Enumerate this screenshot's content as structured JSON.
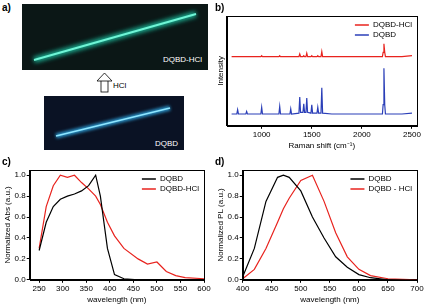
{
  "image_panel": {
    "title": "a)",
    "top_label": "DQBD-HCl",
    "arrow_label": "HCl",
    "bottom_label": "DQBD"
  },
  "chart_data": [
    {
      "type": "line",
      "title": "b)",
      "x_label": "Raman shift (cm⁻¹)",
      "y_label": "Intensity",
      "x": [
        700,
        752,
        760,
        768,
        842,
        850,
        858,
        992,
        1000,
        1008,
        1172,
        1180,
        1188,
        1282,
        1290,
        1298,
        1372,
        1380,
        1388,
        1412,
        1420,
        1428,
        1442,
        1450,
        1458,
        1492,
        1500,
        1508,
        1552,
        1560,
        1568,
        1592,
        1600,
        1608,
        1700,
        2000,
        2205,
        2212,
        2220,
        2228,
        2235,
        2400,
        2500
      ],
      "series": [
        {
          "name": "DQBD-HCl",
          "color": "#e8231e",
          "values": [
            8.2,
            8.2,
            8.2,
            8.2,
            8.2,
            8.2,
            8.2,
            8.2,
            8.3,
            8.2,
            8.2,
            8.3,
            8.2,
            8.2,
            8.2,
            8.2,
            8.2,
            8.5,
            8.2,
            8.2,
            8.3,
            8.2,
            8.2,
            8.6,
            8.2,
            8.2,
            8.3,
            8.2,
            8.2,
            8.3,
            8.2,
            8.2,
            8.8,
            8.2,
            8.2,
            8.2,
            8.2,
            8.7,
            9.7,
            8.7,
            8.2,
            8.2,
            8.3
          ]
        },
        {
          "name": "DQBD",
          "color": "#2b3fb8",
          "values": [
            1.4,
            1.4,
            1.9,
            1.4,
            1.4,
            1.7,
            1.4,
            1.4,
            2.2,
            1.4,
            1.4,
            2.3,
            1.4,
            1.4,
            2.0,
            1.4,
            1.5,
            3.4,
            1.6,
            1.6,
            2.6,
            1.6,
            1.6,
            3.3,
            1.6,
            1.5,
            2.5,
            1.5,
            1.5,
            2.2,
            1.5,
            1.5,
            4.5,
            1.5,
            1.4,
            1.4,
            1.4,
            2.5,
            6.8,
            2.5,
            1.4,
            1.4,
            1.5
          ]
        }
      ],
      "xlim": [
        650,
        2550
      ],
      "xticks": [
        1000,
        1500,
        2000,
        2500
      ],
      "ylim": [
        0,
        13
      ],
      "tick_labels": "x",
      "grid": false,
      "legend": "top-right"
    },
    {
      "type": "line",
      "title": "c)",
      "x_label": "wavelength (nm)",
      "y_label": "Normalized Abs (a.u.)",
      "x": [
        250,
        265,
        280,
        295,
        310,
        325,
        340,
        355,
        370,
        380,
        395,
        410,
        430,
        460,
        480,
        500,
        520,
        540,
        560,
        600
      ],
      "series": [
        {
          "name": "DQBD",
          "color": "#000000",
          "values": [
            0.28,
            0.55,
            0.7,
            0.77,
            0.8,
            0.82,
            0.85,
            0.9,
            1.0,
            0.8,
            0.3,
            0.05,
            0.01,
            0,
            0,
            0,
            0,
            0,
            0,
            0
          ]
        },
        {
          "name": "DQBD-HCl",
          "color": "#e8231e",
          "values": [
            0.3,
            0.7,
            0.9,
            1.0,
            0.98,
            1.0,
            0.93,
            0.87,
            0.8,
            0.72,
            0.55,
            0.42,
            0.3,
            0.2,
            0.15,
            0.17,
            0.08,
            0.04,
            0.02,
            0.01
          ]
        }
      ],
      "xlim": [
        230,
        600
      ],
      "xticks": [
        250,
        300,
        350,
        400,
        450,
        500,
        550,
        600
      ],
      "ylim": [
        0,
        1.05
      ],
      "yticks": [
        {
          "value": 0,
          "label": "0.0"
        },
        0.2,
        0.4,
        0.6,
        0.8,
        {
          "value": 1,
          "label": "1.0"
        }
      ],
      "grid": false,
      "legend": "top-right"
    },
    {
      "type": "line",
      "title": "d)",
      "x_label": "wavelength (nm)",
      "y_label": "Normalized PL (a.u.)",
      "x": [
        400,
        420,
        440,
        460,
        470,
        480,
        500,
        520,
        540,
        560,
        580,
        600,
        620,
        650,
        700
      ],
      "series": [
        {
          "name": "DQBD",
          "color": "#000000",
          "values": [
            0.03,
            0.3,
            0.75,
            0.98,
            1.0,
            0.98,
            0.85,
            0.6,
            0.4,
            0.22,
            0.12,
            0.05,
            0.02,
            0,
            0
          ]
        },
        {
          "name": "DQBD - HCl",
          "color": "#e8231e",
          "values": [
            0.01,
            0.1,
            0.3,
            0.55,
            0.68,
            0.78,
            0.95,
            1.0,
            0.75,
            0.45,
            0.22,
            0.1,
            0.04,
            0.01,
            0
          ]
        }
      ],
      "xlim": [
        400,
        700
      ],
      "xticks": [
        400,
        450,
        500,
        550,
        600,
        650,
        700
      ],
      "ylim": [
        0,
        1.05
      ],
      "yticks": [
        {
          "value": 0,
          "label": "0.0"
        },
        0.2,
        0.4,
        0.6,
        0.8,
        {
          "value": 1,
          "label": "1.0"
        }
      ],
      "grid": false,
      "legend": "top-right"
    }
  ]
}
